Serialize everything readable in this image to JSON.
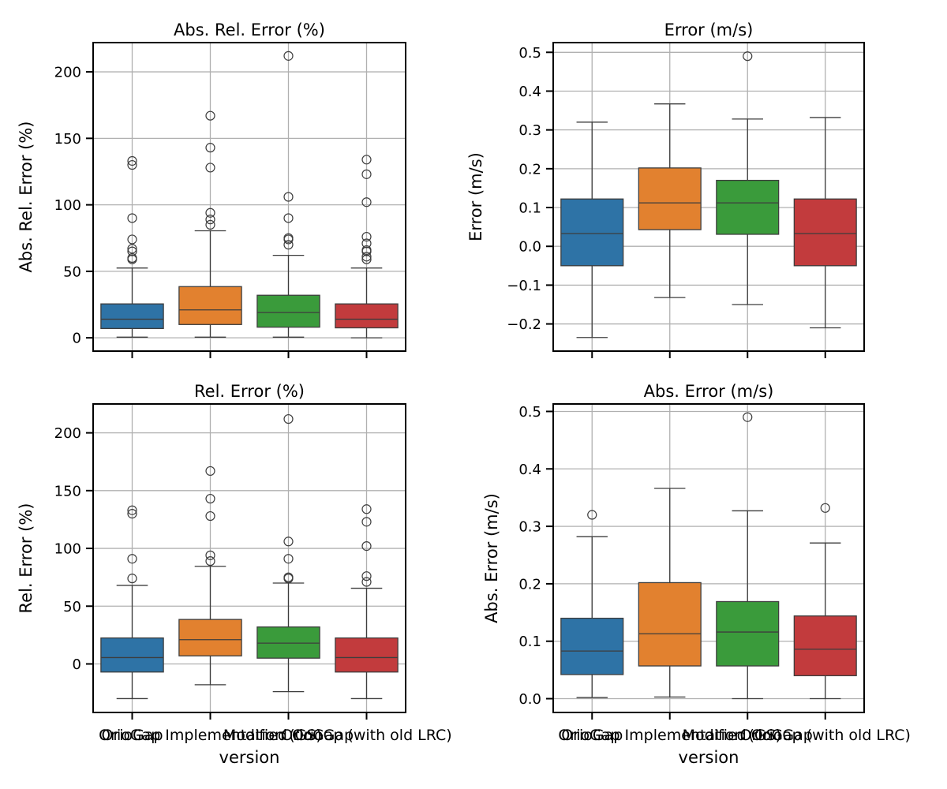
{
  "chart_data": {
    "type": "box",
    "grid": true,
    "xlabel": "version",
    "categories": [
      "OrioGap",
      "OrioGap Implementation (GS)",
      "Modified OrioGap",
      "OrioGap (with old LRC)"
    ],
    "colors": [
      "#2e73a6",
      "#e2812f",
      "#3a9b3b",
      "#c23b3d"
    ],
    "panels": [
      {
        "title": "Abs. Rel. Error (%)",
        "ylabel": "Abs. Rel. Error (%)",
        "ylim": [
          -10,
          222
        ],
        "yticks": [
          0,
          50,
          100,
          150,
          200
        ],
        "ytick_labels": [
          "0",
          "50",
          "100",
          "150",
          "200"
        ],
        "show_xticklabels": false,
        "boxes": [
          {
            "whislo": 0.5,
            "q1": 7,
            "med": 14,
            "q3": 25.5,
            "whishi": 52.5,
            "fliers": [
              59,
              60,
              65,
              67,
              74,
              90,
              130,
              133
            ]
          },
          {
            "whislo": 0.5,
            "q1": 10,
            "med": 21,
            "q3": 38.5,
            "whishi": 80.5,
            "fliers": [
              85,
              89,
              94,
              128,
              143,
              167
            ]
          },
          {
            "whislo": 0.5,
            "q1": 8,
            "med": 19,
            "q3": 32,
            "whishi": 62,
            "fliers": [
              70,
              74,
              75,
              90,
              106,
              212
            ]
          },
          {
            "whislo": 0,
            "q1": 7.5,
            "med": 14,
            "q3": 25.5,
            "whishi": 52.5,
            "fliers": [
              59,
              61,
              65,
              66,
              71,
              76,
              102,
              123,
              134
            ]
          }
        ]
      },
      {
        "title": "Error (m/s)",
        "ylabel": "Error (m/s)",
        "ylim": [
          -0.27,
          0.525
        ],
        "yticks": [
          -0.2,
          -0.1,
          0.0,
          0.1,
          0.2,
          0.3,
          0.4,
          0.5
        ],
        "ytick_labels": [
          "−0.2",
          "−0.1",
          "0.0",
          "0.1",
          "0.2",
          "0.3",
          "0.4",
          "0.5"
        ],
        "show_xticklabels": false,
        "boxes": [
          {
            "whislo": -0.235,
            "q1": -0.05,
            "med": 0.033,
            "q3": 0.122,
            "whishi": 0.32,
            "fliers": []
          },
          {
            "whislo": -0.132,
            "q1": 0.043,
            "med": 0.112,
            "q3": 0.202,
            "whishi": 0.367,
            "fliers": []
          },
          {
            "whislo": -0.15,
            "q1": 0.031,
            "med": 0.112,
            "q3": 0.17,
            "whishi": 0.328,
            "fliers": [
              0.49
            ]
          },
          {
            "whislo": -0.21,
            "q1": -0.05,
            "med": 0.033,
            "q3": 0.122,
            "whishi": 0.332,
            "fliers": []
          }
        ]
      },
      {
        "title": "Rel. Error (%)",
        "ylabel": "Rel. Error (%)",
        "ylim": [
          -42,
          225
        ],
        "yticks": [
          0,
          50,
          100,
          150,
          200
        ],
        "ytick_labels": [
          "0",
          "50",
          "100",
          "150",
          "200"
        ],
        "show_xticklabels": true,
        "boxes": [
          {
            "whislo": -30,
            "q1": -7,
            "med": 5.5,
            "q3": 22.5,
            "whishi": 68,
            "fliers": [
              74,
              91,
              130,
              133
            ]
          },
          {
            "whislo": -18,
            "q1": 7,
            "med": 21,
            "q3": 38.5,
            "whishi": 84.5,
            "fliers": [
              89,
              94,
              128,
              143,
              167
            ]
          },
          {
            "whislo": -24,
            "q1": 5,
            "med": 18,
            "q3": 32,
            "whishi": 70,
            "fliers": [
              74,
              75,
              91,
              106,
              212
            ]
          },
          {
            "whislo": -30,
            "q1": -7,
            "med": 5.5,
            "q3": 22.5,
            "whishi": 65.5,
            "fliers": [
              71,
              76,
              102,
              123,
              134
            ]
          }
        ]
      },
      {
        "title": "Abs. Error (m/s)",
        "ylabel": "Abs. Error (m/s)",
        "ylim": [
          -0.024,
          0.513
        ],
        "yticks": [
          0.0,
          0.1,
          0.2,
          0.3,
          0.4,
          0.5
        ],
        "ytick_labels": [
          "0.0",
          "0.1",
          "0.2",
          "0.3",
          "0.4",
          "0.5"
        ],
        "show_xticklabels": true,
        "boxes": [
          {
            "whislo": 0.002,
            "q1": 0.042,
            "med": 0.083,
            "q3": 0.14,
            "whishi": 0.282,
            "fliers": [
              0.32
            ]
          },
          {
            "whislo": 0.003,
            "q1": 0.057,
            "med": 0.113,
            "q3": 0.202,
            "whishi": 0.366,
            "fliers": []
          },
          {
            "whislo": 0.0,
            "q1": 0.057,
            "med": 0.116,
            "q3": 0.169,
            "whishi": 0.327,
            "fliers": [
              0.49
            ]
          },
          {
            "whislo": 0.0,
            "q1": 0.04,
            "med": 0.086,
            "q3": 0.144,
            "whishi": 0.271,
            "fliers": [
              0.332
            ]
          }
        ]
      }
    ]
  }
}
